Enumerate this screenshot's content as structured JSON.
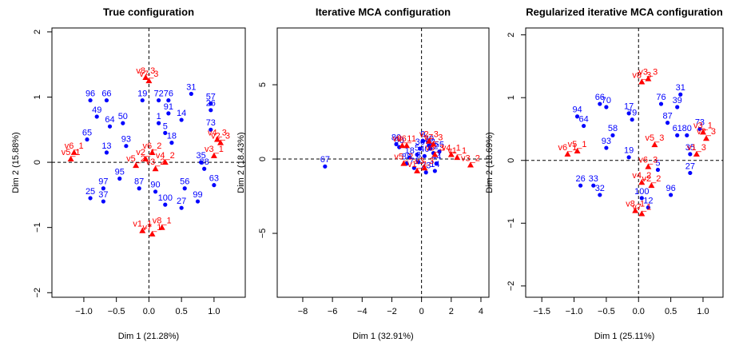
{
  "chart_data": [
    {
      "type": "scatter",
      "title": "True configuration",
      "xlabel": "Dim 1 (21.28%)",
      "ylabel": "Dim 2 (15.88%)",
      "xlim": [
        -1.49,
        1.48
      ],
      "ylim": [
        -2.07,
        2.06
      ],
      "xticks": [
        {
          "value": -1,
          "label": "−1.0"
        },
        {
          "value": -0.5,
          "label": "−0.5"
        },
        {
          "value": 0,
          "label": "0.0"
        },
        0.5,
        {
          "value": 1,
          "label": "1.0"
        }
      ],
      "yticks": [
        {
          "value": -2,
          "label": "−2"
        },
        {
          "value": -1,
          "label": "−1"
        },
        0,
        1,
        2
      ],
      "series": [
        {
          "color": "#0000ff",
          "marker": "circle",
          "labels": [
            "31",
            "76",
            "72",
            "19",
            "96",
            "66",
            "49",
            "64",
            "50",
            "91",
            "1",
            "5",
            "14",
            "93",
            "18",
            "13",
            "65",
            "73",
            "35",
            "95",
            "97",
            "25",
            "37",
            "87",
            "90",
            "56",
            "100",
            "27",
            "99",
            "63",
            "38",
            "26",
            "57"
          ],
          "x": [
            0.65,
            0.3,
            0.15,
            -0.1,
            -0.9,
            -0.65,
            -0.8,
            -0.6,
            -0.4,
            0.3,
            0.15,
            0.25,
            0.5,
            -0.35,
            0.35,
            -0.65,
            -0.95,
            0.95,
            0.8,
            -0.45,
            -0.7,
            -0.9,
            -0.7,
            -0.15,
            0.1,
            0.55,
            0.25,
            0.5,
            0.75,
            1.0,
            0.85,
            0.95,
            0.95
          ],
          "y": [
            1.05,
            0.95,
            0.95,
            0.95,
            0.95,
            0.95,
            0.7,
            0.55,
            0.6,
            0.75,
            0.6,
            0.45,
            0.65,
            0.25,
            0.3,
            0.15,
            0.35,
            0.5,
            0.0,
            -0.25,
            -0.4,
            -0.55,
            -0.6,
            -0.4,
            -0.45,
            -0.4,
            -0.65,
            -0.7,
            -0.6,
            -0.35,
            -0.1,
            0.8,
            0.9
          ]
        },
        {
          "color": "#ff0000",
          "marker": "triangle",
          "labels": [
            "v7_3",
            "v8_3",
            "v3_1",
            "v2_3",
            "v4_3",
            "v6_1",
            "v5_1",
            "v1_1",
            "v8_1",
            "v7_1",
            "v2_1",
            "v3_2",
            "v4_2",
            "v5_2",
            "v6_2"
          ],
          "x": [
            0.0,
            -0.05,
            1.0,
            1.1,
            1.05,
            -1.15,
            -1.2,
            -0.1,
            0.2,
            0.05,
            -0.05,
            0.1,
            0.25,
            -0.2,
            0.05
          ],
          "y": [
            1.25,
            1.3,
            0.1,
            0.3,
            0.35,
            0.15,
            0.05,
            -1.05,
            -1.0,
            -1.1,
            0.05,
            -0.1,
            0.0,
            -0.05,
            0.15
          ]
        }
      ]
    },
    {
      "type": "scatter",
      "title": "Iterative MCA configuration",
      "xlabel": "Dim 1 (32.91%)",
      "ylabel": "Dim 2 (18.43%)",
      "xlim": [
        -9.72,
        4.54
      ],
      "ylim": [
        -9.3,
        8.82
      ],
      "xticks": [
        {
          "value": -8,
          "label": "−8"
        },
        {
          "value": -6,
          "label": "−6"
        },
        {
          "value": -4,
          "label": "−4"
        },
        {
          "value": -2,
          "label": "−2"
        },
        0,
        2,
        4
      ],
      "yticks": [
        {
          "value": -5,
          "label": "−5"
        },
        0,
        5
      ],
      "series": [
        {
          "color": "#0000ff",
          "marker": "circle",
          "labels": [
            "67",
            "80",
            "90",
            "9",
            "30",
            "12",
            "5",
            "44",
            "71",
            "23",
            "18",
            "62",
            "3",
            "55",
            "40",
            "88",
            "14",
            "36"
          ],
          "x": [
            -6.5,
            -1.7,
            -1.5,
            0.1,
            0.5,
            0.8,
            -0.3,
            1.0,
            -0.5,
            0.3,
            -0.8,
            0.6,
            -0.2,
            1.2,
            0.2,
            -1.0,
            0.9,
            -0.1
          ],
          "y": [
            -0.5,
            1.0,
            0.8,
            1.2,
            0.9,
            0.4,
            0.3,
            -0.3,
            -0.6,
            -0.9,
            0.1,
            0.7,
            -0.2,
            0.5,
            0.2,
            -0.3,
            -0.8,
            0.7
          ]
        },
        {
          "color": "#ff0000",
          "marker": "triangle",
          "labels": [
            "v3_2",
            "v1_1",
            "v4_1",
            "v8_1",
            "v6_1",
            "v7_3",
            "v2_3",
            "v5_2",
            "v3_3",
            "v1_2",
            "v6_3"
          ],
          "x": [
            3.3,
            2.4,
            2.0,
            -1.3,
            -1.0,
            0.8,
            0.5,
            -1.2,
            0.2,
            -0.3,
            0.9
          ],
          "y": [
            -0.4,
            0.1,
            0.3,
            0.9,
            0.9,
            1.0,
            1.2,
            -0.3,
            -0.6,
            -0.8,
            0.3
          ]
        }
      ]
    },
    {
      "type": "scatter",
      "title": "Regularized iterative MCA configuration",
      "xlabel": "Dim 1 (25.11%)",
      "ylabel": "Dim 2 (18.69%)",
      "xlim": [
        -1.75,
        1.31
      ],
      "ylim": [
        -2.18,
        2.11
      ],
      "xticks": [
        {
          "value": -1.5,
          "label": "−1.5"
        },
        {
          "value": -1,
          "label": "−1.0"
        },
        {
          "value": -0.5,
          "label": "−0.5"
        },
        {
          "value": 0,
          "label": "0.0"
        },
        0.5,
        {
          "value": 1,
          "label": "1.0"
        }
      ],
      "yticks": [
        {
          "value": -2,
          "label": "−2"
        },
        {
          "value": -1,
          "label": "−1"
        },
        0,
        1,
        2
      ],
      "series": [
        {
          "color": "#0000ff",
          "marker": "circle",
          "labels": [
            "31",
            "66",
            "70",
            "17",
            "76",
            "39",
            "94",
            "58",
            "93",
            "79",
            "61",
            "80",
            "35",
            "19",
            "33",
            "32",
            "100",
            "12",
            "96",
            "5",
            "27",
            "73",
            "64",
            "26",
            "87"
          ],
          "x": [
            0.65,
            -0.6,
            -0.5,
            -0.15,
            0.35,
            0.6,
            -0.95,
            -0.4,
            -0.5,
            -0.1,
            0.6,
            0.75,
            0.8,
            -0.15,
            -0.7,
            -0.6,
            0.05,
            0.15,
            0.5,
            0.3,
            0.8,
            0.95,
            -0.85,
            -0.9,
            0.45
          ],
          "y": [
            1.05,
            0.9,
            0.85,
            0.75,
            0.9,
            0.85,
            0.7,
            0.4,
            0.2,
            0.65,
            0.4,
            0.4,
            0.1,
            0.05,
            -0.4,
            -0.55,
            -0.6,
            -0.75,
            -0.55,
            -0.15,
            -0.2,
            0.5,
            0.55,
            -0.4,
            0.6
          ]
        },
        {
          "color": "#ff0000",
          "marker": "triangle",
          "labels": [
            "v8_3",
            "v3_3",
            "v6_1",
            "v5_1",
            "v2_3",
            "v1_3",
            "v3_1",
            "v8_1",
            "v7_1",
            "v2_2",
            "v4_2",
            "v5_3",
            "v6_3"
          ],
          "x": [
            0.05,
            0.15,
            -1.1,
            -0.95,
            1.05,
            0.9,
            1.0,
            -0.05,
            0.05,
            0.2,
            0.05,
            0.25,
            0.15
          ],
          "y": [
            1.25,
            1.3,
            0.1,
            0.15,
            0.35,
            0.1,
            0.45,
            -0.8,
            -0.85,
            -0.4,
            -0.35,
            0.25,
            -0.1
          ]
        }
      ]
    }
  ]
}
